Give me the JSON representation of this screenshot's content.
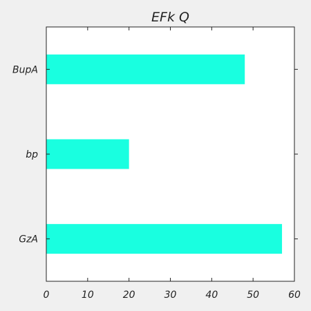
{
  "chart_data": {
    "type": "bar",
    "orientation": "horizontal",
    "title": "EFk  Q",
    "categories": [
      "BupA",
      "bp",
      "GzA"
    ],
    "values": [
      48,
      20,
      57
    ],
    "xlim": [
      0,
      60
    ],
    "xticks": [
      0,
      10,
      20,
      30,
      40,
      50,
      60
    ],
    "grid": false,
    "colors": {
      "bar": "#19ffe0",
      "background": "#ffffff",
      "figure": "#f0f0f0",
      "axis": "#222222"
    }
  }
}
